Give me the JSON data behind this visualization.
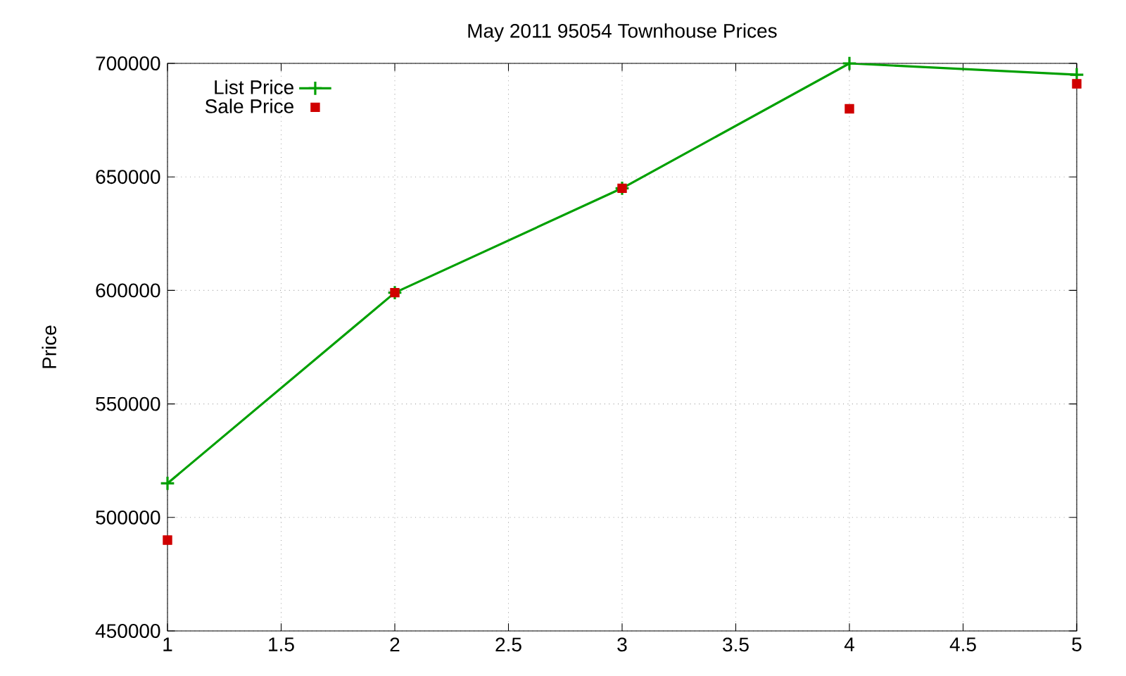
{
  "chart_data": {
    "type": "line",
    "title": "May 2011 95054 Townhouse Prices",
    "ylabel": "Price",
    "x": [
      1,
      2,
      3,
      4,
      5
    ],
    "series": [
      {
        "name": "List Price",
        "marker": "cross",
        "color": "#00a000",
        "values": [
          515000,
          599000,
          645000,
          700000,
          695000
        ]
      },
      {
        "name": "Sale Price",
        "type": "scatter",
        "marker": "square",
        "color": "#d00000",
        "values": [
          490000,
          599000,
          645000,
          680000,
          691000
        ]
      }
    ],
    "xlim": [
      1,
      5
    ],
    "ylim": [
      450000,
      700000
    ],
    "xticks": [
      1,
      1.5,
      2,
      2.5,
      3,
      3.5,
      4,
      4.5,
      5
    ],
    "yticks": [
      450000,
      500000,
      550000,
      600000,
      650000,
      700000
    ],
    "grid": true,
    "legend": "top left"
  }
}
